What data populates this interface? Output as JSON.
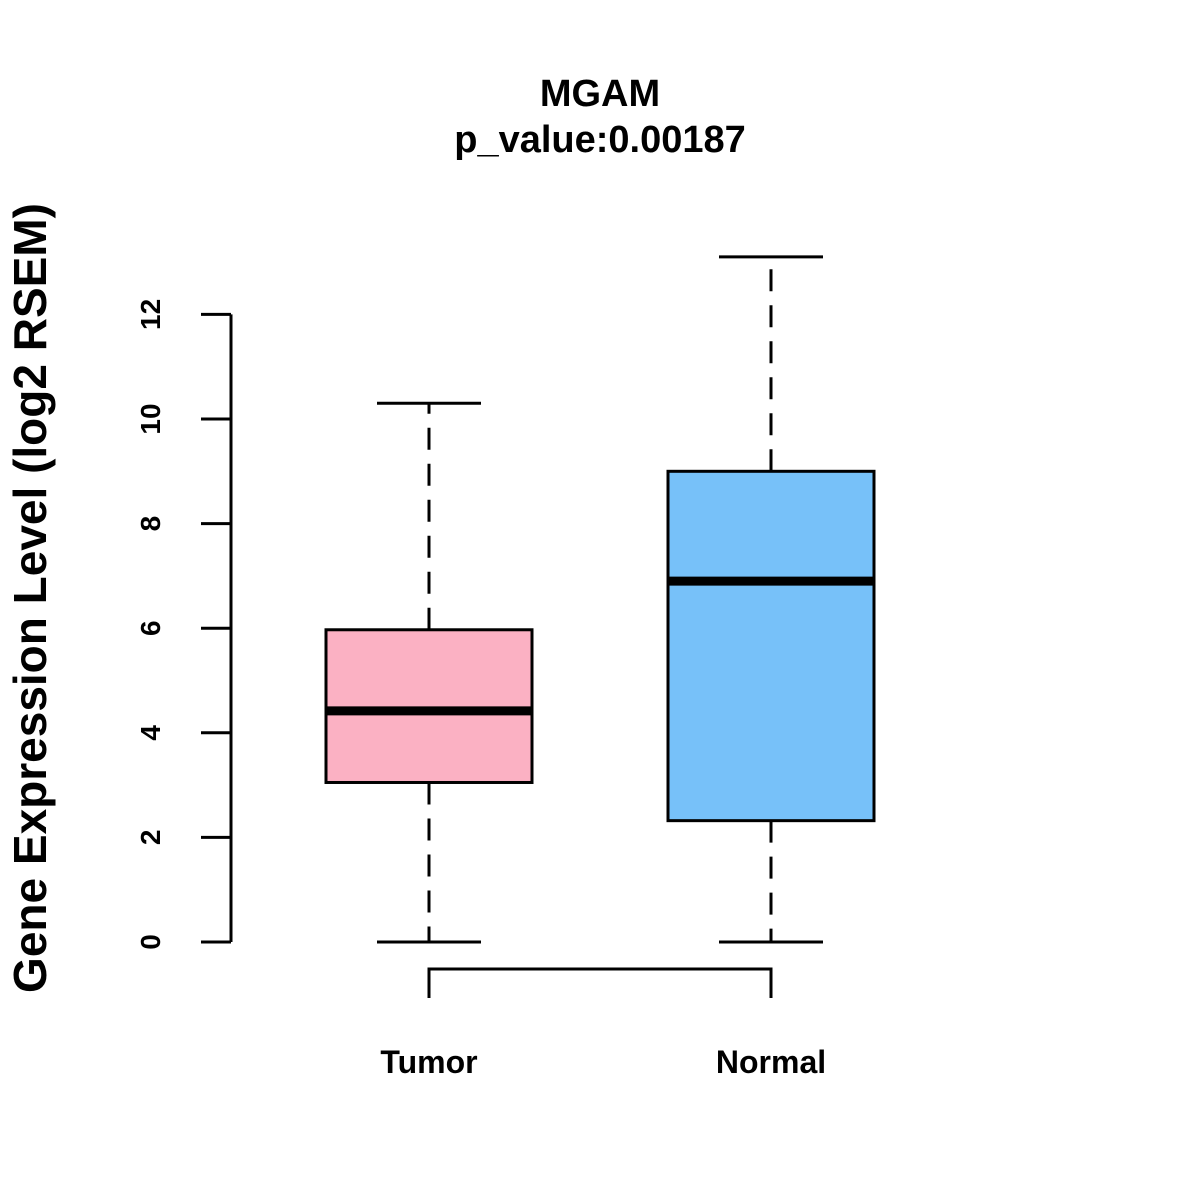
{
  "chart_data": {
    "type": "boxplot",
    "title": "MGAM",
    "subtitle": "p_value:0.00187",
    "xlabel": "",
    "ylabel": "Gene Expression Level (log2 RSEM)",
    "ylim": [
      0,
      12
    ],
    "yticks": [
      0,
      2,
      4,
      6,
      8,
      10,
      12
    ],
    "categories": [
      "Tumor",
      "Normal"
    ],
    "series": [
      {
        "name": "Tumor",
        "color": "#FBB1C3",
        "min": 0,
        "q1": 3.05,
        "median": 4.42,
        "q3": 5.97,
        "max": 10.3
      },
      {
        "name": "Normal",
        "color": "#77C1F9",
        "min": 0,
        "q1": 2.32,
        "median": 6.9,
        "q3": 9.0,
        "max": 13.1
      }
    ],
    "comparison_bracket": [
      "Tumor",
      "Normal"
    ],
    "grid": false,
    "legend": "none"
  }
}
